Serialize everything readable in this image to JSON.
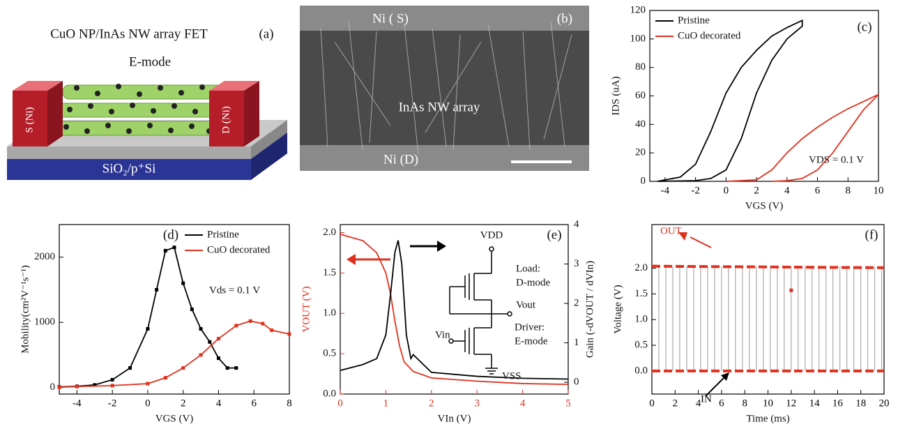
{
  "panel_a": {
    "title": "CuO NP/InAs NW array FET",
    "label": "(a)",
    "mode": "E-mode",
    "source": "S (Ni)",
    "drain": "D (Ni)",
    "substrate": "SiO₂/p⁺Si"
  },
  "panel_b": {
    "label": "(b)",
    "top": "Ni ( S)",
    "middle": "InAs NW array",
    "bottom": "Ni (D)"
  },
  "chart_data": [
    {
      "type": "line",
      "panel_label": "(c)",
      "x_label": "VGS (V)",
      "y_label": "IDS (uA)",
      "annotation": "VDS = 0.1 V",
      "legend": "upper left",
      "xlim": [
        -5,
        10
      ],
      "xticks": [
        -4,
        -2,
        0,
        2,
        4,
        6,
        8,
        10
      ],
      "ylim": [
        0,
        120
      ],
      "yticks": [
        0,
        20,
        40,
        60,
        80,
        100,
        120
      ],
      "series": [
        {
          "name": "Pristine",
          "color": "#000000",
          "x": [
            -4.5,
            -3,
            -2,
            -1,
            0,
            1,
            2,
            3,
            4,
            5,
            5,
            4,
            3,
            2,
            1,
            0,
            -1,
            -2,
            -4.5
          ],
          "values": [
            0,
            3,
            12,
            35,
            62,
            80,
            92,
            102,
            108,
            113,
            109,
            100,
            85,
            62,
            30,
            8,
            2,
            0.5,
            0
          ]
        },
        {
          "name": "CuO decorated",
          "color": "#e0301e",
          "x": [
            0,
            2,
            3,
            4,
            5,
            6,
            7,
            8,
            9,
            10,
            10,
            9,
            8,
            7,
            6,
            5,
            4,
            3
          ],
          "values": [
            0,
            1,
            8,
            20,
            30,
            38,
            45,
            51,
            56,
            61,
            61,
            50,
            35,
            20,
            8,
            2,
            0.5,
            0
          ]
        }
      ]
    },
    {
      "type": "line",
      "panel_label": "(d)",
      "x_label": "VGS (V)",
      "y_label": "Mobility(cm²V⁻¹s⁻¹)",
      "annotation": "Vds = 0.1 V",
      "legend": "upper right",
      "markers": true,
      "xlim": [
        -5,
        8
      ],
      "xticks": [
        -4,
        -2,
        0,
        2,
        4,
        6,
        8
      ],
      "ylim": [
        -100,
        2500
      ],
      "yticks": [
        0,
        1000,
        2000
      ],
      "series": [
        {
          "name": "Pristine",
          "color": "#000000",
          "x": [
            -5,
            -4,
            -3,
            -2,
            -1,
            0,
            0.5,
            1,
            1.5,
            2,
            2.5,
            3,
            3.5,
            4,
            4.5,
            5
          ],
          "values": [
            10,
            20,
            40,
            120,
            300,
            900,
            1500,
            2100,
            2150,
            1600,
            1200,
            900,
            700,
            450,
            300,
            300
          ]
        },
        {
          "name": "CuO decorated",
          "color": "#e0301e",
          "x": [
            -5,
            -4,
            -2,
            0,
            1,
            2,
            3,
            4,
            5,
            5.8,
            6.5,
            7,
            8
          ],
          "values": [
            5,
            15,
            30,
            60,
            150,
            300,
            500,
            750,
            950,
            1020,
            980,
            880,
            820
          ]
        }
      ]
    },
    {
      "type": "line",
      "panel_label": "(e)",
      "x_label": "VIn (V)",
      "y_label": "VOUT (V)",
      "y2_label": "Gain (-dVOUT / dVIn)",
      "circuit": [
        "VDD",
        "Load:",
        "D-mode",
        "Vout",
        "Vin",
        "Driver:",
        "E-mode",
        "VSS"
      ],
      "xlim": [
        0,
        5
      ],
      "xticks": [
        0,
        1,
        2,
        3,
        4,
        5
      ],
      "ylim": [
        0,
        2.1
      ],
      "yticks": [
        {
          "value": 0,
          "label": "0.0"
        },
        0.5,
        {
          "value": 1,
          "label": "1.0"
        },
        1.5,
        {
          "value": 2,
          "label": "2.0"
        }
      ],
      "y2lim": [
        -0.3,
        4
      ],
      "y2ticks": [
        0,
        1,
        2,
        3,
        4
      ],
      "series": [
        {
          "color": "#e0301e",
          "x": [
            0,
            0.5,
            0.8,
            1,
            1.1,
            1.2,
            1.3,
            1.4,
            1.6,
            2,
            3,
            4,
            5
          ],
          "values": [
            1.98,
            1.9,
            1.75,
            1.5,
            1.25,
            0.9,
            0.6,
            0.4,
            0.28,
            0.2,
            0.16,
            0.13,
            0.12
          ]
        },
        {
          "color": "#000000",
          "axis": "y2",
          "x": [
            0,
            0.5,
            0.8,
            1,
            1.1,
            1.2,
            1.27,
            1.35,
            1.45,
            1.55,
            1.6,
            2,
            3,
            4,
            5
          ],
          "values": [
            0.3,
            0.45,
            0.6,
            1.2,
            2.2,
            3.3,
            3.6,
            3,
            1.2,
            0.6,
            0.7,
            0.25,
            0.15,
            0.1,
            0.08
          ]
        }
      ]
    },
    {
      "type": "line",
      "panel_label": "(f)",
      "x_label": "Time (ms)",
      "y_label": "Voltage (V)",
      "annotations": [
        "OUT",
        "IN"
      ],
      "xlim": [
        0,
        20
      ],
      "xticks": [
        0,
        2,
        4,
        6,
        8,
        10,
        12,
        14,
        16,
        18,
        20
      ],
      "ylim": [
        -0.45,
        2.85
      ],
      "yticks": [
        {
          "value": 0,
          "label": "0.0"
        },
        0.5,
        {
          "value": 1,
          "label": "1.0"
        },
        1.5,
        {
          "value": 2,
          "label": "2.0"
        }
      ],
      "edges": [
        0.6,
        1.2,
        1.8,
        2.4,
        3,
        3.6,
        4.2,
        4.8,
        5.4,
        6,
        6.6,
        7.2,
        7.8,
        8.4,
        9,
        9.6,
        10.2,
        10.8,
        11.4,
        12,
        12.6,
        13.2,
        13.8,
        14.4,
        15,
        15.6,
        16.2,
        16.8,
        17.4,
        18,
        18.6,
        19.2,
        19.8
      ],
      "series": [
        {
          "color": "#e0301e",
          "dashed": true,
          "x": [
            0,
            20
          ],
          "values": [
            2.04,
            2.01
          ]
        },
        {
          "color": "#e0301e",
          "dashed": true,
          "x": [
            0,
            20
          ],
          "values": [
            0,
            0
          ]
        },
        {
          "color": "#e0301e",
          "markers": true,
          "x": [
            12
          ],
          "values": [
            1.57
          ]
        }
      ]
    }
  ]
}
